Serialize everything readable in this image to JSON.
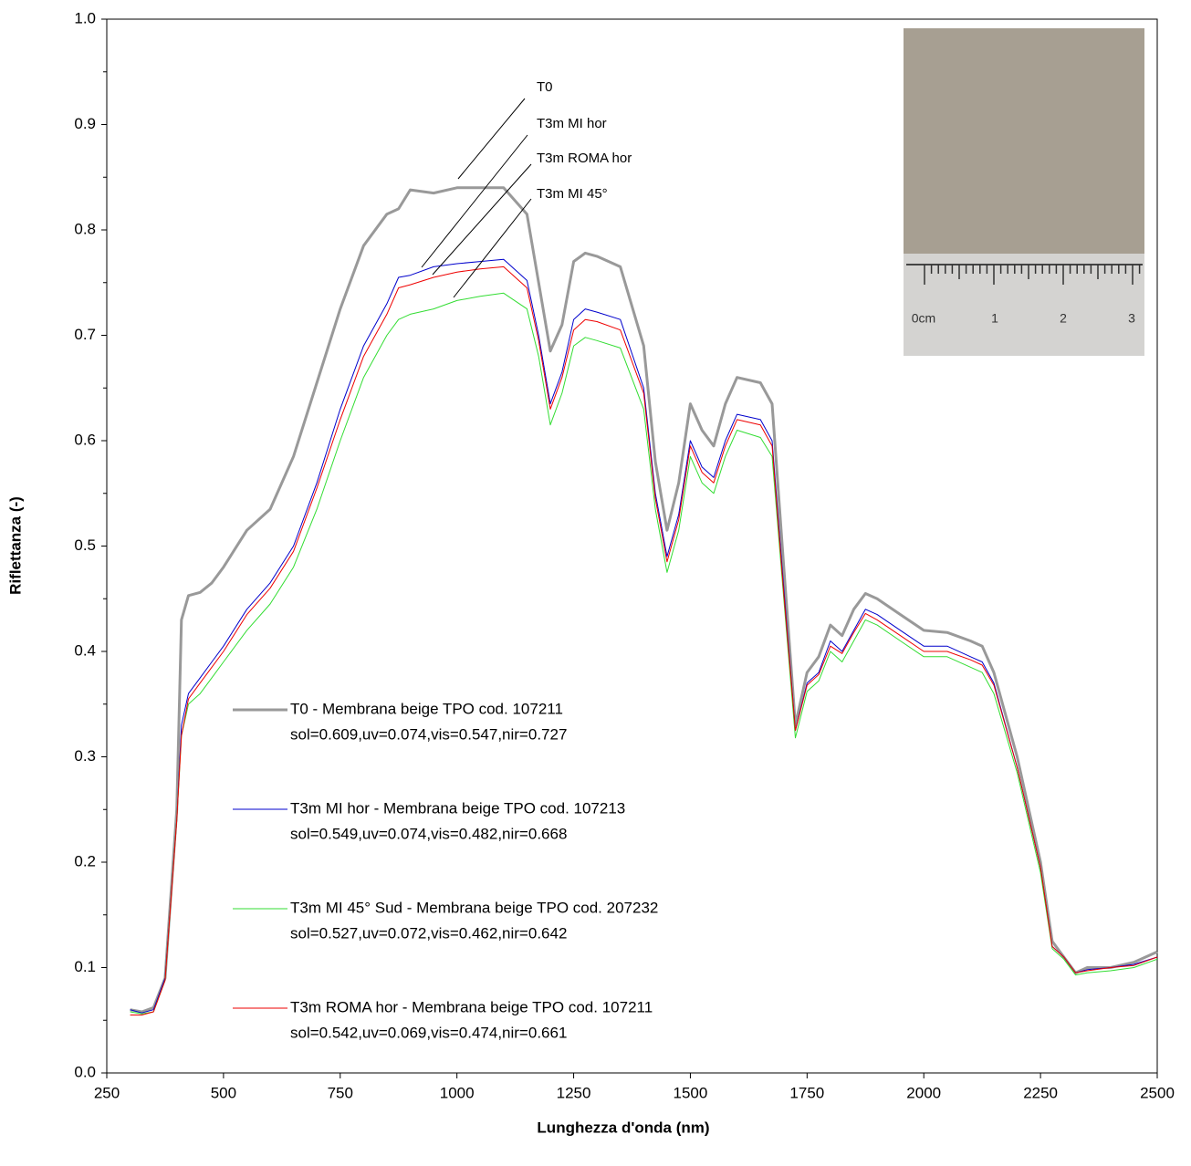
{
  "chart_data": {
    "type": "line",
    "xlabel": "Lunghezza d'onda (nm)",
    "ylabel": "Riflettanza (-)",
    "x": [
      300,
      325,
      350,
      375,
      400,
      410,
      425,
      450,
      475,
      500,
      550,
      600,
      650,
      700,
      750,
      800,
      850,
      875,
      900,
      950,
      1000,
      1050,
      1100,
      1150,
      1175,
      1200,
      1225,
      1250,
      1275,
      1300,
      1350,
      1400,
      1425,
      1450,
      1475,
      1500,
      1525,
      1550,
      1575,
      1600,
      1650,
      1675,
      1700,
      1725,
      1750,
      1775,
      1800,
      1825,
      1850,
      1875,
      1900,
      1950,
      2000,
      2050,
      2100,
      2125,
      2150,
      2200,
      2250,
      2275,
      2300,
      2325,
      2350,
      2400,
      2450,
      2500
    ],
    "series": [
      {
        "name": "T0 - Membrana beige TPO cod. 107211",
        "stats": "sol=0.609,uv=0.074,vis=0.547,nir=0.727",
        "color": "#999999",
        "width": 3,
        "values": [
          0.06,
          0.058,
          0.062,
          0.09,
          0.25,
          0.43,
          0.453,
          0.456,
          0.465,
          0.48,
          0.515,
          0.535,
          0.585,
          0.655,
          0.725,
          0.785,
          0.815,
          0.82,
          0.838,
          0.835,
          0.84,
          0.84,
          0.84,
          0.815,
          0.75,
          0.685,
          0.71,
          0.77,
          0.778,
          0.775,
          0.765,
          0.69,
          0.58,
          0.515,
          0.56,
          0.635,
          0.61,
          0.595,
          0.635,
          0.66,
          0.655,
          0.635,
          0.48,
          0.33,
          0.38,
          0.395,
          0.425,
          0.415,
          0.44,
          0.455,
          0.45,
          0.435,
          0.42,
          0.418,
          0.41,
          0.405,
          0.38,
          0.3,
          0.2,
          0.125,
          0.11,
          0.095,
          0.1,
          0.1,
          0.105,
          0.115
        ]
      },
      {
        "name": "T3m MI hor - Membrana beige TPO cod. 107213",
        "stats": "sol=0.549,uv=0.074,vis=0.482,nir=0.668",
        "color": "#0000cc",
        "width": 1,
        "values": [
          0.06,
          0.057,
          0.06,
          0.09,
          0.24,
          0.33,
          0.36,
          0.375,
          0.39,
          0.405,
          0.44,
          0.465,
          0.5,
          0.56,
          0.63,
          0.69,
          0.73,
          0.755,
          0.757,
          0.765,
          0.768,
          0.77,
          0.772,
          0.752,
          0.7,
          0.635,
          0.665,
          0.715,
          0.725,
          0.722,
          0.715,
          0.65,
          0.55,
          0.49,
          0.53,
          0.6,
          0.575,
          0.565,
          0.6,
          0.625,
          0.62,
          0.6,
          0.46,
          0.325,
          0.37,
          0.38,
          0.41,
          0.4,
          0.42,
          0.44,
          0.435,
          0.42,
          0.405,
          0.405,
          0.395,
          0.39,
          0.37,
          0.29,
          0.195,
          0.12,
          0.11,
          0.095,
          0.098,
          0.1,
          0.103,
          0.11
        ]
      },
      {
        "name": "T3m MI 45° Sud - Membrana beige TPO cod. 207232",
        "stats": "sol=0.527,uv=0.072,vis=0.462,nir=0.642",
        "color": "#33dd33",
        "width": 1,
        "values": [
          0.058,
          0.056,
          0.058,
          0.088,
          0.24,
          0.32,
          0.35,
          0.36,
          0.375,
          0.39,
          0.42,
          0.445,
          0.48,
          0.535,
          0.6,
          0.66,
          0.7,
          0.715,
          0.72,
          0.725,
          0.733,
          0.737,
          0.74,
          0.725,
          0.68,
          0.615,
          0.645,
          0.69,
          0.698,
          0.695,
          0.688,
          0.63,
          0.535,
          0.475,
          0.515,
          0.585,
          0.56,
          0.55,
          0.585,
          0.61,
          0.603,
          0.585,
          0.45,
          0.318,
          0.362,
          0.372,
          0.4,
          0.39,
          0.41,
          0.43,
          0.425,
          0.41,
          0.395,
          0.395,
          0.385,
          0.38,
          0.36,
          0.285,
          0.19,
          0.118,
          0.108,
          0.093,
          0.095,
          0.097,
          0.1,
          0.108
        ]
      },
      {
        "name": "T3m ROMA hor - Membrana beige TPO cod. 107211",
        "stats": "sol=0.542,uv=0.069,vis=0.474,nir=0.661",
        "color": "#ee0000",
        "width": 1,
        "values": [
          0.055,
          0.055,
          0.058,
          0.088,
          0.24,
          0.32,
          0.355,
          0.37,
          0.385,
          0.4,
          0.435,
          0.46,
          0.495,
          0.555,
          0.62,
          0.68,
          0.72,
          0.745,
          0.748,
          0.755,
          0.76,
          0.763,
          0.765,
          0.745,
          0.695,
          0.63,
          0.66,
          0.705,
          0.715,
          0.713,
          0.705,
          0.645,
          0.545,
          0.485,
          0.525,
          0.595,
          0.57,
          0.56,
          0.595,
          0.62,
          0.615,
          0.595,
          0.455,
          0.325,
          0.368,
          0.378,
          0.405,
          0.398,
          0.418,
          0.436,
          0.43,
          0.415,
          0.4,
          0.4,
          0.392,
          0.387,
          0.368,
          0.29,
          0.195,
          0.12,
          0.11,
          0.095,
          0.097,
          0.1,
          0.102,
          0.11
        ]
      }
    ],
    "annotations": [
      "T0",
      "T3m MI hor",
      "T3m ROMA hor",
      "T3m MI 45°"
    ],
    "inset_ruler_labels": [
      "0cm",
      "1",
      "2",
      "3"
    ],
    "xlim": [
      250,
      2500
    ],
    "xticks": [
      250,
      500,
      750,
      1000,
      1250,
      1500,
      1750,
      2000,
      2250,
      2500
    ],
    "ylim": [
      0,
      1
    ],
    "yticks": [
      {
        "value": 0,
        "label": "0.0"
      },
      0.1,
      0.2,
      0.3,
      0.4,
      0.5,
      0.6,
      0.7,
      0.8,
      0.9,
      {
        "value": 1,
        "label": "1.0"
      }
    ],
    "grid": false
  }
}
